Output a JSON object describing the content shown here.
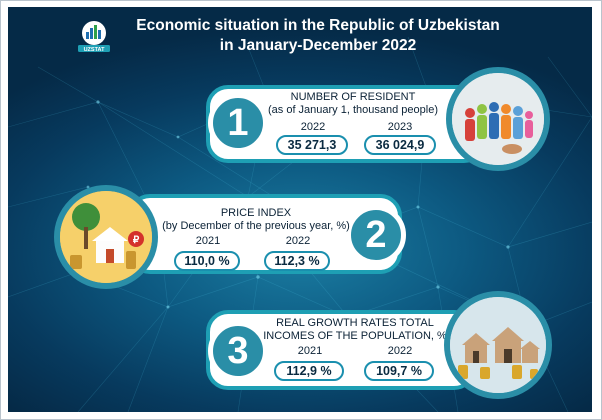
{
  "header": {
    "logo_text": "UZSTAT",
    "title_line1": "Economic situation in the Republic of Uzbekistan",
    "title_line2": "in January-December 2022"
  },
  "blocks": [
    {
      "number": "1",
      "heading_line1": "NUMBER OF RESIDENT",
      "heading_line2": "(as of January 1, thousand people)",
      "year_a": "2022",
      "value_a": "35 271,3",
      "year_b": "2023",
      "value_b": "36 024,9",
      "image_icon": "people-group-icon"
    },
    {
      "number": "2",
      "heading_line1": "PRICE INDEX",
      "heading_line2": "(by December of the previous year, %)",
      "year_a": "2021",
      "value_a": "110,0 %",
      "year_b": "2022",
      "value_b": "112,3 %",
      "image_icon": "house-coins-icon"
    },
    {
      "number": "3",
      "heading_line1": "REAL GROWTH RATES TOTAL",
      "heading_line2": "INCOMES OF THE POPULATION, %",
      "year_a": "2021",
      "value_a": "112,9 %",
      "year_b": "2022",
      "value_b": "109,7 %",
      "image_icon": "houses-coins-icon"
    }
  ],
  "colors": {
    "accent": "#1e9fb4",
    "circle": "#2a8ea7",
    "background": "#0d5a82"
  }
}
